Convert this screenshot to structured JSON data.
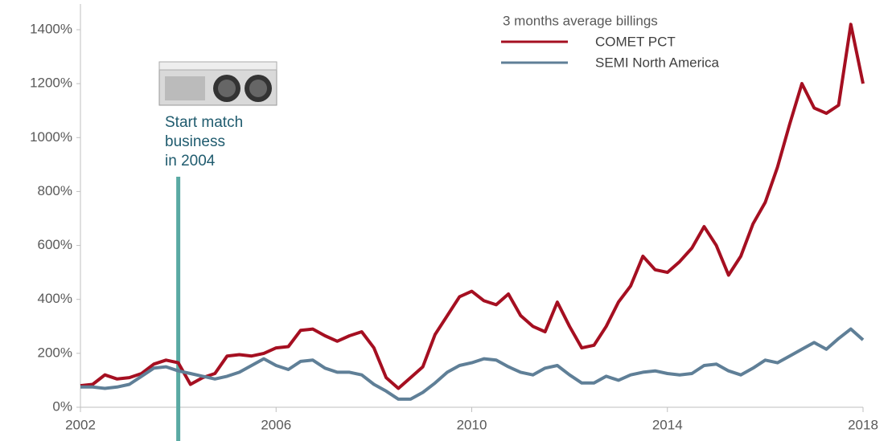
{
  "chart_data": {
    "type": "line",
    "legend_title": "3 months average billings",
    "legend_position": "top right",
    "annotation": {
      "lines": [
        "Start match",
        "business",
        "in 2004"
      ],
      "x": 2004,
      "color": "#5aa9a3",
      "text_color": "#1f5b6e"
    },
    "x": [
      2002,
      2002.25,
      2002.5,
      2002.75,
      2003,
      2003.25,
      2003.5,
      2003.75,
      2004,
      2004.25,
      2004.5,
      2004.75,
      2005,
      2005.25,
      2005.5,
      2005.75,
      2006,
      2006.25,
      2006.5,
      2006.75,
      2007,
      2007.25,
      2007.5,
      2007.75,
      2008,
      2008.25,
      2008.5,
      2008.75,
      2009,
      2009.25,
      2009.5,
      2009.75,
      2010,
      2010.25,
      2010.5,
      2010.75,
      2011,
      2011.25,
      2011.5,
      2011.75,
      2012,
      2012.25,
      2012.5,
      2012.75,
      2013,
      2013.25,
      2013.5,
      2013.75,
      2014,
      2014.25,
      2014.5,
      2014.75,
      2015,
      2015.25,
      2015.5,
      2015.75,
      2016,
      2016.25,
      2016.5,
      2016.75,
      2017,
      2017.25,
      2017.5,
      2017.75,
      2018
    ],
    "series": [
      {
        "name": "COMET PCT",
        "color": "#a50f21",
        "values": [
          80,
          85,
          120,
          105,
          110,
          125,
          160,
          175,
          165,
          85,
          110,
          125,
          190,
          195,
          190,
          200,
          220,
          225,
          285,
          290,
          265,
          245,
          265,
          280,
          220,
          110,
          70,
          110,
          150,
          270,
          340,
          410,
          430,
          395,
          380,
          420,
          340,
          300,
          280,
          390,
          300,
          220,
          230,
          300,
          390,
          450,
          560,
          510,
          500,
          540,
          590,
          670,
          600,
          490,
          560,
          680,
          760,
          890,
          1050,
          1200,
          1110,
          1090,
          1120,
          1420,
          1200
        ]
      },
      {
        "name": "SEMI North America",
        "color": "#5f7f97",
        "values": [
          75,
          75,
          70,
          75,
          85,
          115,
          145,
          150,
          135,
          125,
          115,
          105,
          115,
          130,
          155,
          180,
          155,
          140,
          170,
          175,
          145,
          130,
          130,
          120,
          85,
          60,
          30,
          30,
          55,
          90,
          130,
          155,
          165,
          180,
          175,
          150,
          130,
          120,
          145,
          155,
          120,
          90,
          90,
          115,
          100,
          120,
          130,
          135,
          125,
          120,
          125,
          155,
          160,
          135,
          120,
          145,
          175,
          165,
          190,
          215,
          240,
          215,
          255,
          290,
          250
        ]
      }
    ],
    "xlim": [
      2002,
      2018
    ],
    "xticks": [
      2002,
      2006,
      2010,
      2014,
      2018
    ],
    "ylim": [
      0,
      1400
    ],
    "yticks": [
      {
        "value": 0,
        "label": "0%"
      },
      {
        "value": 200,
        "label": "200%"
      },
      {
        "value": 400,
        "label": "400%"
      },
      {
        "value": 600,
        "label": "600%"
      },
      {
        "value": 800,
        "label": "800%"
      },
      {
        "value": 1000,
        "label": "1000%"
      },
      {
        "value": 1200,
        "label": "1200%"
      },
      {
        "value": 1400,
        "label": "1400%"
      }
    ],
    "grid": false
  }
}
